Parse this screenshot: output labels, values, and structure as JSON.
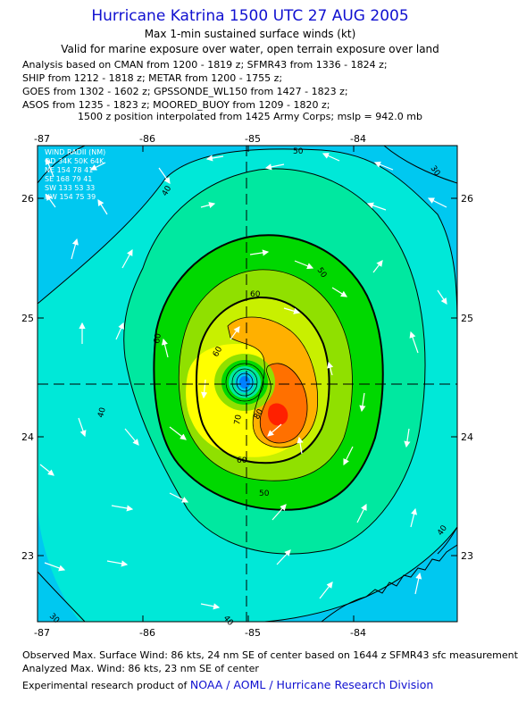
{
  "header": {
    "title": "Hurricane Katrina 1500 UTC 27 AUG 2005",
    "subtitle": "Max 1-min sustained surface winds (kt)",
    "valid_line": "Valid for marine exposure over water, open terrain exposure over land",
    "analysis_lines": [
      "Analysis based on  CMAN from 1200 - 1819 z;  SFMR43 from 1336 - 1824 z;",
      "SHIP from 1212 - 1818 z;  METAR from 1200 - 1755 z;",
      "GOES from 1302 - 1602 z;  GPSSONDE_WL150 from 1427 - 1823 z;",
      "ASOS from 1235 - 1823 z;  MOORED_BUOY from 1209 - 1820 z;"
    ],
    "position_line": "1500 z position interpolated from 1425 Army Corps; mslp = 942.0 mb"
  },
  "map": {
    "lon_ticks": [
      "-87",
      "-86",
      "-85",
      "-84"
    ],
    "lat_ticks": [
      "26",
      "25",
      "24",
      "23"
    ],
    "contour_labels": [
      "40",
      "40",
      "40",
      "50",
      "50",
      "50",
      "60",
      "60",
      "60",
      "60",
      "70",
      "80",
      "30",
      "30",
      "40"
    ],
    "wind_radii": {
      "header": "WIND RADII (NM)",
      "cols": "QD  34K  50K  64K",
      "rows": [
        "NE  154   78   41",
        "SE  168   79   41",
        "SW  133   53   33",
        "NW  154   75   39"
      ]
    },
    "center": {
      "lon": -85.03,
      "lat": 24.45
    },
    "colors": {
      "band30": "#00c8f0",
      "band40": "#00e8d8",
      "band50": "#00e8a0",
      "band60": "#00d800",
      "band65": "#90e000",
      "band70": "#c8f000",
      "band75": "#ffff00",
      "band80": "#ffb000",
      "band85": "#ff7000",
      "band86": "#ff2000",
      "eye": "#0080ff"
    }
  },
  "footer": {
    "observed": "Observed Max. Surface Wind: 86 kts, 24 nm SE of center based on 1644 z SFMR43 sfc measurement",
    "analyzed": "Analyzed Max. Wind: 86 kts, 23 nm SE of center",
    "product_prefix": "Experimental research product of",
    "product_org": "NOAA / AOML / Hurricane Research Division"
  }
}
